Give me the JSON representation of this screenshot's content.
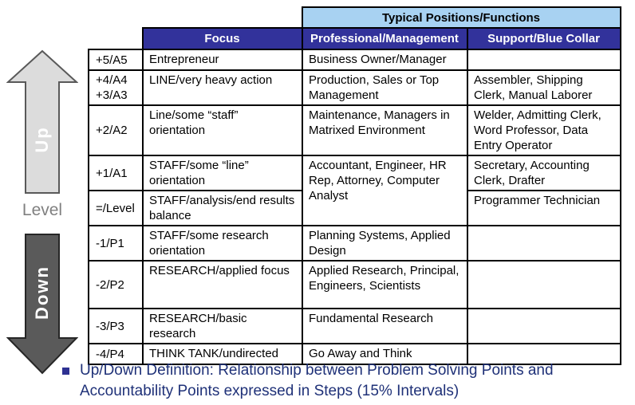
{
  "left_rail": {
    "up_label": "Up",
    "down_label": "Down",
    "level_label": "Level"
  },
  "table": {
    "top_header": "Typical Positions/Functions",
    "col_focus": "Focus",
    "col_professional": "Professional/Management",
    "col_support": "Support/Blue Collar",
    "rows": [
      {
        "level": "+5/A5",
        "focus": "Entrepreneur",
        "professional": "Business Owner/Manager",
        "support": ""
      },
      {
        "level": "+4/A4\n+3/A3",
        "focus": "LINE/very heavy action",
        "professional": "Production, Sales or Top Management",
        "support": "Assembler, Shipping Clerk, Manual Laborer"
      },
      {
        "level": "+2/A2",
        "focus": "Line/some “staff” orientation",
        "professional": "Maintenance, Managers in Matrixed Environment",
        "support": "Welder, Admitting Clerk, Word Professor, Data Entry Operator"
      },
      {
        "level": "+1/A1",
        "focus": "STAFF/some “line” orientation",
        "professional": "Accountant, Engineer, HR Rep, Attorney, Computer Analyst",
        "professional_rowspan": 2,
        "support": "Secretary, Accounting Clerk, Drafter"
      },
      {
        "level": "=/Level",
        "focus": "STAFF/analysis/end results balance",
        "support": "Programmer Technician"
      },
      {
        "level": "-1/P1",
        "focus": "STAFF/some research orientation",
        "professional": "Planning Systems, Applied Design",
        "support": ""
      },
      {
        "level": "-2/P2",
        "focus": "RESEARCH/applied focus",
        "professional": "Applied Research, Principal, Engineers, Scientists",
        "support": ""
      },
      {
        "level": "-3/P3",
        "focus": "RESEARCH/basic research",
        "professional": "Fundamental Research",
        "support": ""
      },
      {
        "level": "-4/P4",
        "focus": "THINK TANK/undirected",
        "professional": "Go Away and Think",
        "support": ""
      }
    ]
  },
  "footnote": {
    "line1": "Up/Down Definition: Relationship between Problem Solving Points and",
    "line2": "Accountability Points expressed in Steps (15% Intervals)"
  },
  "colors": {
    "header_light_blue": "#a8d2f2",
    "header_dark_blue": "#32329b",
    "footnote_navy": "#1f3178",
    "bullet_blue": "#2e3192",
    "up_arrow_fill": "#dcdcdc",
    "up_arrow_stroke": "#595959",
    "down_arrow_fill": "#5a5a5a",
    "down_arrow_stroke": "#262626",
    "level_gray": "#808080"
  }
}
